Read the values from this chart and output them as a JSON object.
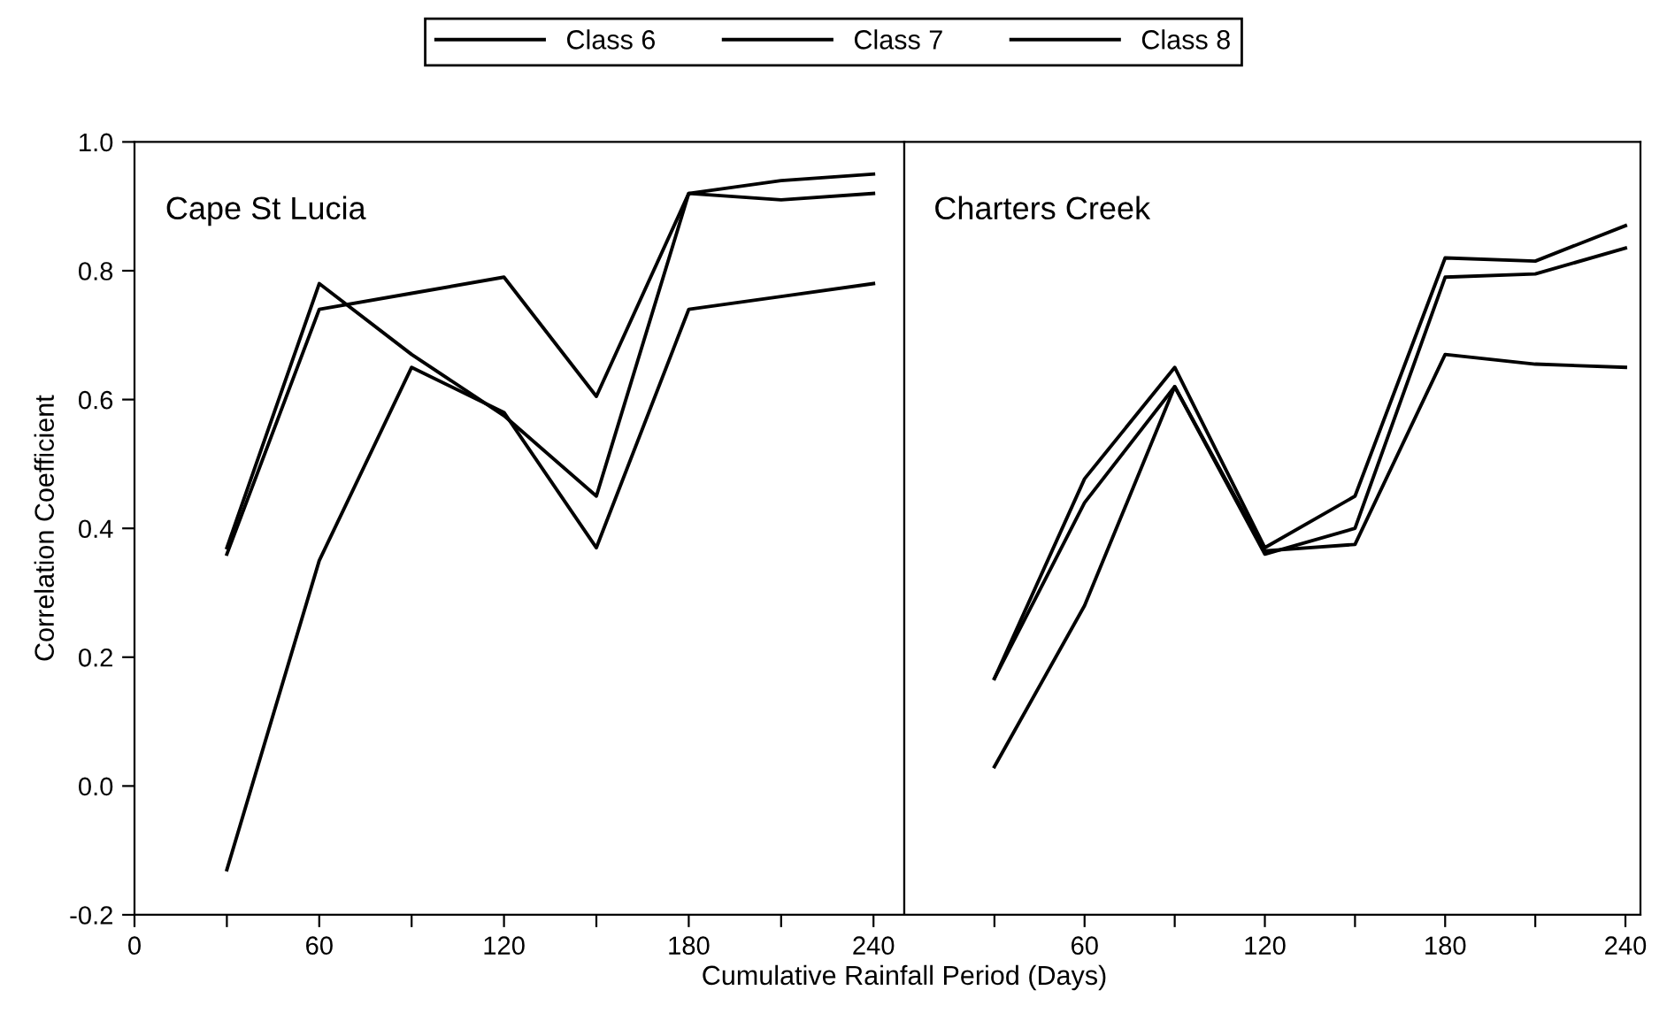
{
  "chart_data": [
    {
      "type": "line",
      "title": "Cape St Lucia",
      "ylabel": "Correlation Coefficient",
      "xlabel": "Cumulative Rainfall Period (Days)",
      "x": [
        30,
        60,
        90,
        120,
        150,
        180,
        210,
        240
      ],
      "series": [
        {
          "name": "Class 6",
          "color": "#000000",
          "values": [
            0.36,
            0.74,
            0.765,
            0.79,
            0.605,
            0.92,
            0.94,
            0.95
          ]
        },
        {
          "name": "Class 7",
          "color": "#000000",
          "values": [
            0.37,
            0.78,
            0.67,
            0.575,
            0.45,
            0.92,
            0.91,
            0.92
          ]
        },
        {
          "name": "Class 8",
          "color": "#000000",
          "values": [
            -0.13,
            0.35,
            0.65,
            0.58,
            0.37,
            0.74,
            0.76,
            0.78
          ]
        }
      ],
      "xlim": [
        0,
        250
      ],
      "ylim": [
        -0.2,
        1.0
      ],
      "xticks": [
        0,
        {
          "value": 30,
          "label": null
        },
        60,
        {
          "value": 90,
          "label": null
        },
        120,
        {
          "value": 150,
          "label": null
        },
        180,
        {
          "value": 210,
          "label": null
        },
        240
      ],
      "yticks": [
        {
          "value": -0.2,
          "label": "-0.2"
        },
        {
          "value": 0,
          "label": "0.0"
        },
        0.2,
        0.4,
        0.6,
        0.8,
        {
          "value": 1,
          "label": "1.0"
        }
      ],
      "legend": "top",
      "grid": false,
      "marker": "none",
      "line_style": "solid"
    },
    {
      "type": "line",
      "title": "Charters Creek",
      "x": [
        30,
        60,
        90,
        120,
        150,
        180,
        210,
        240
      ],
      "series": [
        {
          "color": "#000000",
          "values": [
            0.167,
            0.477,
            0.65,
            0.37,
            0.45,
            0.82,
            0.815,
            0.87
          ]
        },
        {
          "color": "#000000",
          "values": [
            0.167,
            0.44,
            0.62,
            0.36,
            0.4,
            0.79,
            0.795,
            0.835
          ]
        },
        {
          "color": "#000000",
          "values": [
            0.03,
            0.28,
            0.62,
            0.365,
            0.375,
            0.67,
            0.655,
            0.65
          ]
        }
      ],
      "xlim": [
        0,
        245
      ],
      "ylim": [
        -0.2,
        1.0
      ],
      "xticks": [
        {
          "value": 30,
          "label": null
        },
        60,
        {
          "value": 90,
          "label": null
        },
        120,
        {
          "value": 150,
          "label": null
        },
        180,
        {
          "value": 210,
          "label": null
        },
        240
      ],
      "yticks": [
        {
          "value": -0.2,
          "label": null
        },
        {
          "value": 0,
          "label": null
        },
        {
          "value": 0.2,
          "label": null
        },
        {
          "value": 0.4,
          "label": null
        },
        {
          "value": 0.6,
          "label": null
        },
        {
          "value": 0.8,
          "label": null
        },
        {
          "value": 1,
          "label": null
        }
      ],
      "tick_labels": "x",
      "grid": false,
      "marker": "none",
      "line_style": "solid"
    }
  ]
}
